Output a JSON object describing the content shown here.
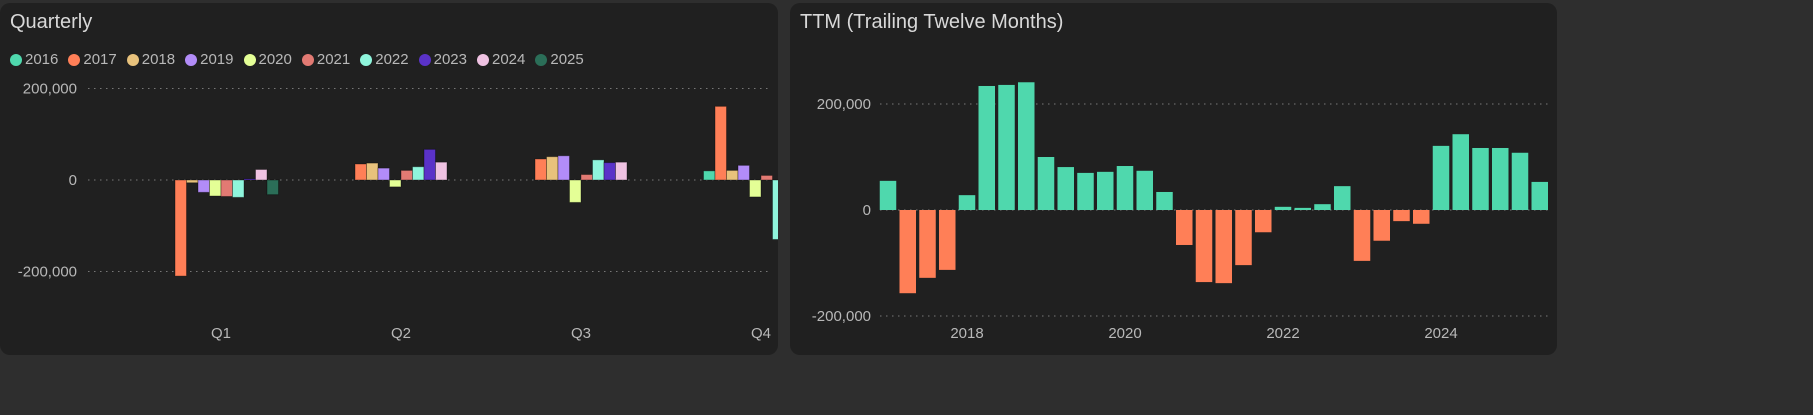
{
  "chart_data": [
    {
      "type": "bar",
      "title": "Quarterly",
      "categories": [
        "Q1",
        "Q2",
        "Q3",
        "Q4"
      ],
      "ylim": [
        -230000,
        230000
      ],
      "yticks": [
        {
          "v": 200000,
          "label": "200,000"
        },
        {
          "v": 0,
          "label": "0"
        },
        {
          "v": -200000,
          "label": "-200,000"
        }
      ],
      "legend_position": "top-left",
      "series": [
        {
          "name": "2016",
          "color": "#4fd8ad",
          "values": [
            0,
            0,
            0,
            20000
          ]
        },
        {
          "name": "2017",
          "color": "#ff7f57",
          "values": [
            -210000,
            35000,
            46000,
            161000
          ]
        },
        {
          "name": "2018",
          "color": "#e8c27c",
          "values": [
            -6000,
            37000,
            51000,
            21000
          ]
        },
        {
          "name": "2019",
          "color": "#b28cf8",
          "values": [
            -27000,
            26000,
            53000,
            32000
          ]
        },
        {
          "name": "2020",
          "color": "#e4ff96",
          "values": [
            -35000,
            -15000,
            -49000,
            -37000
          ]
        },
        {
          "name": "2021",
          "color": "#e27a73",
          "values": [
            -36000,
            21000,
            12000,
            10000
          ]
        },
        {
          "name": "2022",
          "color": "#8ff5dc",
          "values": [
            -38000,
            29000,
            44000,
            -130000
          ]
        },
        {
          "name": "2023",
          "color": "#5a32c8",
          "values": [
            2500,
            67000,
            38000,
            16000
          ]
        },
        {
          "name": "2024",
          "color": "#efc2e2",
          "values": [
            23000,
            39000,
            39000,
            8000
          ]
        },
        {
          "name": "2025",
          "color": "#2b6e58",
          "values": [
            -32000,
            0,
            0,
            0
          ]
        }
      ]
    },
    {
      "type": "bar",
      "title": "TTM (Trailing Twelve Months)",
      "xlabels": [
        "2018",
        "2020",
        "2022",
        "2024"
      ],
      "x_start": "2017 Q1",
      "ylim": [
        -230000,
        260000
      ],
      "yticks": [
        {
          "v": 200000,
          "label": "200,000"
        },
        {
          "v": 0,
          "label": "0"
        },
        {
          "v": -200000,
          "label": "-200,000"
        }
      ],
      "positive_color": "#4fd8ad",
      "negative_color": "#ff7f57",
      "values": [
        55000,
        -157000,
        -128000,
        -113000,
        28000,
        234000,
        236000,
        241000,
        100000,
        81000,
        70000,
        72000,
        83000,
        74000,
        34000,
        -66000,
        -136000,
        -138000,
        -104000,
        -42000,
        6000,
        4000,
        11000,
        45000,
        -96000,
        -58000,
        -21000,
        -26000,
        121000,
        143000,
        117000,
        117000,
        108000,
        53000
      ]
    }
  ]
}
